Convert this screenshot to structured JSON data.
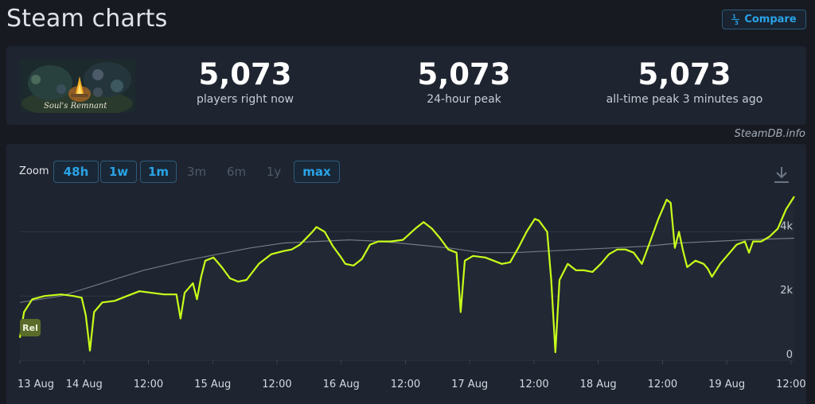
{
  "header": {
    "title": "Steam charts",
    "compare_label": "Compare",
    "compare_icon": "fraction-icon"
  },
  "stats": {
    "thumbnail_caption": "Soul's Remnant",
    "players_now": {
      "value": "5,073",
      "label": "players right now"
    },
    "peak_24h": {
      "value": "5,073",
      "label": "24-hour peak"
    },
    "all_time_peak": {
      "value": "5,073",
      "label": "all-time peak 3 minutes ago"
    }
  },
  "attribution": "SteamDB.info",
  "zoom": {
    "label": "Zoom",
    "options": [
      {
        "label": "48h",
        "enabled": true
      },
      {
        "label": "1w",
        "enabled": true
      },
      {
        "label": "1m",
        "enabled": true
      },
      {
        "label": "3m",
        "enabled": false
      },
      {
        "label": "6m",
        "enabled": false
      },
      {
        "label": "1y",
        "enabled": false
      },
      {
        "label": "max",
        "enabled": true
      }
    ]
  },
  "chart_data": {
    "type": "line",
    "x_ticks": [
      "13 Aug",
      "14 Aug",
      "12:00",
      "15 Aug",
      "12:00",
      "16 Aug",
      "12:00",
      "17 Aug",
      "12:00",
      "18 Aug",
      "12:00",
      "19 Aug",
      "12:00"
    ],
    "y_ticks": [
      "0",
      "2k",
      "4k"
    ],
    "ylim": [
      0,
      5200
    ],
    "grid": true,
    "marker_label": "Rel",
    "colors": {
      "players": "#c8ff1a",
      "trend": "#8a8f98",
      "background": "#1e2430"
    },
    "series": [
      {
        "key": "players",
        "points": [
          [
            0,
            700
          ],
          [
            1,
            1500
          ],
          [
            3,
            1900
          ],
          [
            6,
            2000
          ],
          [
            10,
            2050
          ],
          [
            13,
            2000
          ],
          [
            15,
            1950
          ],
          [
            16,
            1400
          ],
          [
            17,
            300
          ],
          [
            18,
            1500
          ],
          [
            20,
            1800
          ],
          [
            23,
            1850
          ],
          [
            26,
            2000
          ],
          [
            29,
            2150
          ],
          [
            32,
            2100
          ],
          [
            35,
            2050
          ],
          [
            38,
            2050
          ],
          [
            39,
            1300
          ],
          [
            40,
            2100
          ],
          [
            42,
            2400
          ],
          [
            43,
            1900
          ],
          [
            44,
            2600
          ],
          [
            45,
            3100
          ],
          [
            47,
            3200
          ],
          [
            49,
            2900
          ],
          [
            51,
            2550
          ],
          [
            53,
            2450
          ],
          [
            55,
            2500
          ],
          [
            58,
            3000
          ],
          [
            61,
            3300
          ],
          [
            64,
            3400
          ],
          [
            66,
            3450
          ],
          [
            68,
            3600
          ],
          [
            71,
            4000
          ],
          [
            72,
            4150
          ],
          [
            74,
            4000
          ],
          [
            76,
            3550
          ],
          [
            78,
            3200
          ],
          [
            79,
            3000
          ],
          [
            81,
            2950
          ],
          [
            83,
            3150
          ],
          [
            85,
            3600
          ],
          [
            87,
            3700
          ],
          [
            90,
            3700
          ],
          [
            93,
            3750
          ],
          [
            96,
            4100
          ],
          [
            98,
            4300
          ],
          [
            100,
            4100
          ],
          [
            102,
            3800
          ],
          [
            104,
            3450
          ],
          [
            106,
            3350
          ],
          [
            107,
            1500
          ],
          [
            108,
            3100
          ],
          [
            110,
            3250
          ],
          [
            113,
            3200
          ],
          [
            115,
            3100
          ],
          [
            117,
            3000
          ],
          [
            119,
            3050
          ],
          [
            121,
            3500
          ],
          [
            123,
            4000
          ],
          [
            125,
            4400
          ],
          [
            126,
            4350
          ],
          [
            128,
            4000
          ],
          [
            129,
            2500
          ],
          [
            130,
            250
          ],
          [
            131,
            2500
          ],
          [
            133,
            3000
          ],
          [
            135,
            2800
          ],
          [
            137,
            2800
          ],
          [
            139,
            2750
          ],
          [
            141,
            3000
          ],
          [
            143,
            3300
          ],
          [
            145,
            3450
          ],
          [
            147,
            3450
          ],
          [
            149,
            3350
          ],
          [
            151,
            3000
          ],
          [
            153,
            3700
          ],
          [
            155,
            4400
          ],
          [
            157,
            5000
          ],
          [
            158,
            4900
          ],
          [
            159,
            3500
          ],
          [
            160,
            4000
          ],
          [
            161,
            3400
          ],
          [
            162,
            2900
          ],
          [
            164,
            3100
          ],
          [
            166,
            3000
          ],
          [
            167,
            2850
          ],
          [
            168,
            2600
          ],
          [
            170,
            3000
          ],
          [
            172,
            3300
          ],
          [
            174,
            3600
          ],
          [
            176,
            3700
          ],
          [
            177,
            3350
          ],
          [
            178,
            3700
          ],
          [
            180,
            3700
          ],
          [
            182,
            3850
          ],
          [
            184,
            4100
          ],
          [
            186,
            4700
          ],
          [
            188,
            5100
          ]
        ]
      },
      {
        "key": "trend",
        "points": [
          [
            0,
            1800
          ],
          [
            10,
            2000
          ],
          [
            20,
            2400
          ],
          [
            30,
            2800
          ],
          [
            40,
            3100
          ],
          [
            48,
            3300
          ],
          [
            56,
            3500
          ],
          [
            64,
            3650
          ],
          [
            72,
            3700
          ],
          [
            80,
            3750
          ],
          [
            88,
            3700
          ],
          [
            96,
            3600
          ],
          [
            104,
            3500
          ],
          [
            112,
            3350
          ],
          [
            120,
            3350
          ],
          [
            128,
            3400
          ],
          [
            136,
            3450
          ],
          [
            144,
            3500
          ],
          [
            152,
            3550
          ],
          [
            160,
            3650
          ],
          [
            168,
            3700
          ],
          [
            176,
            3750
          ],
          [
            188,
            3800
          ]
        ]
      }
    ]
  }
}
